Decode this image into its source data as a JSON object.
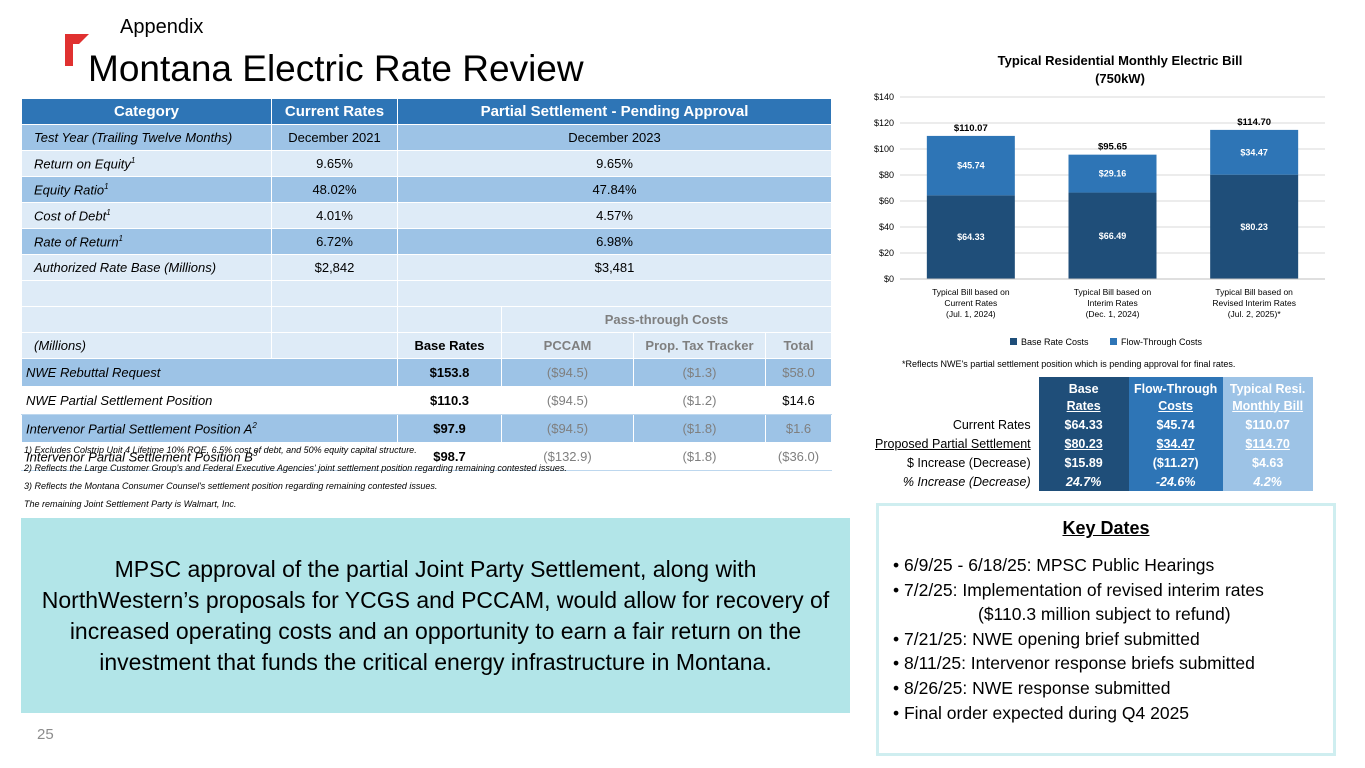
{
  "header": {
    "section": "Appendix",
    "title": "Montana Electric Rate Review"
  },
  "rate_table": {
    "headers": [
      "Category",
      "Current Rates",
      "Partial Settlement - Pending Approval"
    ],
    "rows": [
      {
        "category": "Test Year (Trailing Twelve Months)",
        "sup": "",
        "current": "December 2021",
        "settlement": "December 2023"
      },
      {
        "category": "Return on Equity",
        "sup": "1",
        "current": "9.65%",
        "settlement": "9.65%"
      },
      {
        "category": "Equity Ratio",
        "sup": "1",
        "current": "48.02%",
        "settlement": "47.84%"
      },
      {
        "category": "Cost of Debt",
        "sup": "1",
        "current": "4.01%",
        "settlement": "4.57%"
      },
      {
        "category": "Rate of Return",
        "sup": "1",
        "current": "6.72%",
        "settlement": "6.98%"
      },
      {
        "category": "Authorized Rate Base (Millions)",
        "sup": "",
        "current": "$2,842",
        "settlement": "$3,481"
      }
    ],
    "pass_through_label": "Pass-through Costs",
    "sub_headers": {
      "millions": "(Millions)",
      "base": "Base Rates",
      "pccam": "PCCAM",
      "tax": "Prop. Tax Tracker",
      "total": "Total"
    },
    "positions": [
      {
        "name": "NWE Rebuttal Request",
        "sup": "",
        "base": "$153.8",
        "pccam": "($94.5)",
        "tax": "($1.3)",
        "total": "$58.0"
      },
      {
        "name": "NWE Partial Settlement Position",
        "sup": "",
        "base": "$110.3",
        "pccam": "($94.5)",
        "tax": "($1.2)",
        "total": "$14.6"
      },
      {
        "name": "Intervenor Partial Settlement Position A",
        "sup": "2",
        "base": "$97.9",
        "pccam": "($94.5)",
        "tax": "($1.8)",
        "total": "$1.6"
      },
      {
        "name": "Intervenor Partial Settlement Position B",
        "sup": "3",
        "base": "$98.7",
        "pccam": "($132.9)",
        "tax": "($1.8)",
        "total": "($36.0)"
      }
    ]
  },
  "footnotes": [
    "1) Excludes Colstrip Unit 4 Lifetime 10% ROE, 6.5% cost of debt, and 50% equity capital structure.",
    "2) Reflects the Large Customer Group's and Federal Executive Agencies' joint settlement position regarding remaining contested issues.",
    "3) Reflects the Montana Consumer Counsel's settlement position regarding remaining contested issues.",
    "The remaining Joint Settlement Party is Walmart, Inc."
  ],
  "callout": "MPSC approval of the partial Joint Party Settlement, along with NorthWestern’s proposals for YCGS and PCCAM, would allow for recovery of increased operating costs and an opportunity to earn a fair return on the investment that funds the critical energy infrastructure in Montana.",
  "page_number": "25",
  "chart_title_line1": "Typical Residential Monthly Electric Bill",
  "chart_title_line2": "(750kW)",
  "chart_note": "*Reflects NWE's partial settlement position which is pending approval for final rates.",
  "chart_data": {
    "type": "bar",
    "stacked": true,
    "title": "Typical Residential Monthly Electric Bill (750kW)",
    "categories": [
      [
        "Typical Bill based on",
        "Current Rates",
        "(Jul. 1, 2024)"
      ],
      [
        "Typical Bill based on",
        "Interim Rates",
        "(Dec. 1, 2024)"
      ],
      [
        "Typical Bill based on",
        "Revised Interim Rates",
        "(Jul. 2, 2025)*"
      ]
    ],
    "series": [
      {
        "name": "Base Rate Costs",
        "values": [
          64.33,
          66.49,
          80.23
        ],
        "labels": [
          "$64.33",
          "$66.49",
          "$80.23"
        ],
        "color": "#1f4e79"
      },
      {
        "name": "Flow-Through Costs",
        "values": [
          45.74,
          29.16,
          34.47
        ],
        "labels": [
          "$45.74",
          "$29.16",
          "$34.47"
        ],
        "color": "#2e75b6"
      }
    ],
    "totals": [
      "$110.07",
      "$95.65",
      "$114.70"
    ],
    "yticks": [
      "$0",
      "$20",
      "$40",
      "$60",
      "$80",
      "$100",
      "$120",
      "$140"
    ],
    "ylim": [
      0,
      140
    ],
    "legend": "bottom"
  },
  "bill_table": {
    "headers": [
      [
        "Base",
        "Rates"
      ],
      [
        "Flow-Through",
        "Costs"
      ],
      [
        "Typical Resi.",
        "Monthly Bill"
      ]
    ],
    "rows": [
      {
        "label": "Current Rates",
        "base": "$64.33",
        "flow": "$45.74",
        "total": "$110.07"
      },
      {
        "label": "Proposed Partial Settlement",
        "base": "$80.23",
        "flow": "$34.47",
        "total": "$114.70"
      },
      {
        "label": "$ Increase (Decrease)",
        "base": "$15.89",
        "flow": "($11.27)",
        "total": "$4.63"
      },
      {
        "label": "% Increase (Decrease)",
        "base": "24.7%",
        "flow": "-24.6%",
        "total": "4.2%"
      }
    ]
  },
  "key_dates": {
    "title": "Key Dates",
    "items": [
      "• 6/9/25 - 6/18/25:  MPSC Public Hearings",
      "• 7/2/25:  Implementation of revised interim rates",
      "($110.3 million subject to refund)",
      "• 7/21/25:  NWE opening brief submitted",
      "• 8/11/25:  Intervenor response briefs submitted",
      "• 8/26/25:  NWE response submitted",
      "• Final order expected during Q4 2025"
    ]
  }
}
